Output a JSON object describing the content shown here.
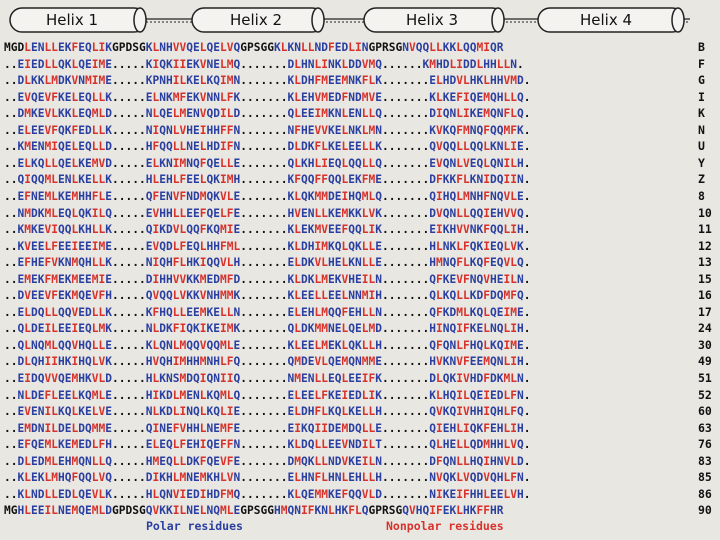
{
  "helices": [
    "Helix 1",
    "Helix 2",
    "Helix 3",
    "Helix 4"
  ],
  "linker_labels": [
    "GPDSG",
    "GPSGG",
    "GPRSG"
  ],
  "legend": {
    "polar": "Polar residues",
    "nonpolar": "Nonpolar residues"
  },
  "colors": {
    "polar": "#2a3fa0",
    "nonpolar": "#d8322c",
    "linker": "#111111"
  },
  "rows": [
    {
      "id": "B",
      "seq": "MGDLENLLEKFEQLIKGPDSGKLNHVVQELQELVQGPSGGKLKNLLNDFEDLINGPRSGNVQQLLKKLQQMIQR"
    },
    {
      "id": "F",
      "seq": "..EIEDLLQKLQEIME.....KIQKIIEKVNELMQ.......DLHNLINKLDDVMQ......KMHDLIDDLHHLLN."
    },
    {
      "id": "G",
      "seq": "..DLKKLMDKVNMIME.....KPNHILKELKQIMN.......KLDHFMEEMNKFLK.......ELHDVLHKLHHVMD."
    },
    {
      "id": "I",
      "seq": "..EVQEVFKELEQLLK.....ELNKMFEKVNNLFK.......KLEHVMEDFNDMVE.......KLKEFIQEMQHLLQ."
    },
    {
      "id": "K",
      "seq": "..DMKEVLKKLEQMLD.....NLQELMENVQDILD.......QLEEIMKNLENLLQ.......DIQNLIKEMQNFLQ."
    },
    {
      "id": "N",
      "seq": "..ELEEVFQKFEDLLK.....NIQNLVHEIHHFFN.......NFHEVVKELNKLMN.......KVKQFMNQFQQMFK."
    },
    {
      "id": "U",
      "seq": "..KMENMIQELEQLLD.....HFQQLLNELHDIFN.......DLDKFLKELEELLK.......QVQQLLQQLKNLIE."
    },
    {
      "id": "Y",
      "seq": "..ELKQLLQELKEMVD.....ELKNIMNQFQELLE.......QLKHLIEQLQQLLQ.......EVQNLVEQLQNILH."
    },
    {
      "id": "Z",
      "seq": "..QIQQMLENLKELLK.....HLEHLFEELQKIMH.......KFQQFFQQLEKFME.......DFKKFLKNIDQIIN."
    },
    {
      "id": "8",
      "seq": "..EFNEMLKEMHHFLE.....QFENVFNDMQKVLE.......KLQKMMDEIHQMLQ.......QIHQLMNHFNQVLE."
    },
    {
      "id": "10",
      "seq": "..NMDKMLEQLQKILQ.....EVHHLLEEFQELFE.......HVENLLKEMKKLVK.......DVQNLLQQIEHVVQ."
    },
    {
      "id": "11",
      "seq": "..KMKEVIQQLKHLLK.....QIKDVLQQFKQMIE.......KLEKMVEEFQQLIK.......EIKHVVNKFQQLIH."
    },
    {
      "id": "12",
      "seq": "..KVEELFEEIEEIME.....EVQDLFEQLHHFML.......KLDHIMKQLQKLLE.......HLNKLFQKIEQLVK."
    },
    {
      "id": "13",
      "seq": "..EFHEFVKNMQHLLK.....NIQHFLHKIQQVLH.......ELDKVLHELKNLLE.......HMNQFLKQFEQVLQ."
    },
    {
      "id": "15",
      "seq": "..EMEKFMEKMEEMIE.....DIHHVVKKMEDMFD.......KLDKLMEKVHEILN.......QFKEVFNQVHEILN."
    },
    {
      "id": "16",
      "seq": "..DVEEVFEKMQEVFH.....QVQQLVKKVNHMMK.......KLEELLEELNNMIH.......QLKQLLKDFDQMFQ."
    },
    {
      "id": "17",
      "seq": "..ELDQLLQQVEDLLK.....KFHQLLEEMKELLN.......ELEHLMQQFEHLLN.......QFKDMLKQLQEIME."
    },
    {
      "id": "24",
      "seq": "..QLDEILEEIEQLMK.....NLDKFIQKIKEIMK.......QLDKMMNELQELMD.......HINQIFKELNQLIH."
    },
    {
      "id": "30",
      "seq": "..QLNQMLQQVHQLLE.....KLQNLMQQVQQMLE.......KLEELMEKLQKLLH.......QFQNLFHQLKQIME."
    },
    {
      "id": "49",
      "seq": "..DLQHIIHKIHQLVK.....HVQHIMHHMNHLFQ.......QMDEVLQEMQNMME.......HVKNVFEEMQNLIH."
    },
    {
      "id": "51",
      "seq": "..EIDQVVQEMHKVLD.....HLKNSMDQIQNIIQ.......NMENLLEQLEEIFK.......DLQKIVHDFDKMLN."
    },
    {
      "id": "52",
      "seq": "..NLDEFLEELKQMLE.....HIKDLMENLKQMLQ.......ELEELFKEIEDLIK.......KLHQILQEIEDLFN."
    },
    {
      "id": "60",
      "seq": "..EVENILKQLKELVE.....NLKDLINQLKQLIE.......ELDHFLKQLKELLH.......QVKQIVHHIQHLFQ."
    },
    {
      "id": "63",
      "seq": "..EMDNILDELDQMME.....QINEFVHHLNEMFE.......EIKQIIDEMDQLLE.......QIEHLIQKFEHLIH."
    },
    {
      "id": "76",
      "seq": "..EFQEMLKEMEDLFH.....ELEQLFEHIQEFFN.......KLDQLLEEVNDILT.......QLHELLQDMHHLVQ."
    },
    {
      "id": "83",
      "seq": "..DLEDMLEHMQNLLQ.....HMEQLLDKFQEVFE.......DMQKLLNDVKEILN.......DFQNLLHQIHNVLD."
    },
    {
      "id": "85",
      "seq": "..KLEKLMHQFQQLVQ.....DIKHLMNEMKHLVN.......ELHNFLHNLEHLLH.......NVQKLVQDVQHLFN."
    },
    {
      "id": "86",
      "seq": "..KLNDLLEDLQEVLK.....HLQNVIEDIHDFMQ.......KLQEMMKEFQQVLD.......NIKEIFHHLEELVH."
    },
    {
      "id": "90",
      "seq": "MGHLEEILNEMQEMLDGPDSGQVKKILNELNQMLEGPSGGHMQNIFKNLHKFLQGPRSGQVHQIFEKLHKFFHR"
    }
  ]
}
